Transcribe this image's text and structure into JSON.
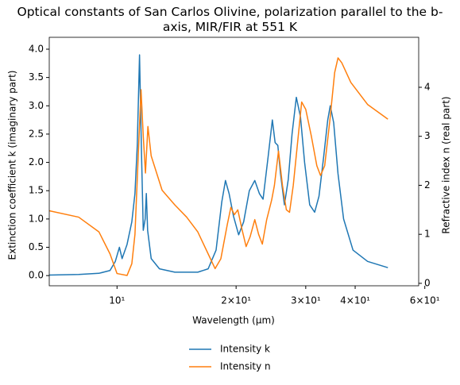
{
  "chart_data": {
    "type": "line",
    "title": "Optical constants of San Carlos Olivine, polarization parallel to the b-axis, MIR/FIR at 551 K",
    "x_label": "Wavelength (μm)",
    "y_label": "Extinction coefficient k (imaginary part)",
    "y2_label": "Refractive index n (real part)",
    "x_log": true,
    "xlim": [
      6.74,
      57.9
    ],
    "xticks": [
      {
        "value": 10,
        "label": "10¹"
      },
      {
        "value": 20,
        "label": "2×10¹"
      },
      {
        "value": 30,
        "label": "3×10¹"
      },
      {
        "value": 40,
        "label": "4×10¹"
      },
      {
        "value": 60,
        "label": "6×10¹"
      }
    ],
    "ylim": [
      -0.18,
      4.21
    ],
    "yticks": [
      {
        "value": 0,
        "label": "0.0"
      },
      {
        "value": 0.5,
        "label": "0.5"
      },
      {
        "value": 1,
        "label": "1.0"
      },
      {
        "value": 1.5,
        "label": "1.5"
      },
      {
        "value": 2,
        "label": "2.0"
      },
      {
        "value": 2.5,
        "label": "2.5"
      },
      {
        "value": 3,
        "label": "3.0"
      },
      {
        "value": 3.5,
        "label": "3.5"
      },
      {
        "value": 4,
        "label": "4.0"
      }
    ],
    "y2lim": [
      -0.05,
      5.02
    ],
    "y2ticks": [
      0,
      1,
      2,
      3,
      4
    ],
    "legend": "below",
    "series": [
      {
        "name": "Intensity k",
        "color": "#1f77b4",
        "x": [
          6.74,
          8,
          9,
          9.6,
          9.9,
          10.14,
          10.3,
          10.6,
          10.9,
          11.1,
          11.25,
          11.4,
          11.52,
          11.65,
          11.78,
          11.86,
          11.95,
          12.2,
          12.8,
          14,
          16,
          17,
          17.8,
          18.4,
          18.8,
          19.2,
          19.7,
          20.3,
          20.9,
          21.6,
          22.3,
          22.9,
          23.4,
          24.1,
          24.7,
          25.1,
          25.5,
          25.9,
          26.5,
          27.1,
          27.7,
          28.4,
          29.1,
          29.8,
          30.7,
          31.6,
          32.4,
          33.3,
          34.1,
          34.6,
          35.3,
          36.2,
          37.4,
          39.5,
          43,
          48.4
        ],
        "values": [
          0.01,
          0.02,
          0.04,
          0.09,
          0.25,
          0.5,
          0.3,
          0.55,
          0.95,
          1.45,
          2.3,
          3.9,
          2.3,
          0.8,
          1.0,
          1.45,
          0.8,
          0.3,
          0.12,
          0.06,
          0.06,
          0.12,
          0.45,
          1.3,
          1.68,
          1.45,
          1.05,
          0.72,
          0.95,
          1.5,
          1.68,
          1.45,
          1.35,
          2.1,
          2.75,
          2.35,
          2.3,
          1.8,
          1.25,
          1.7,
          2.5,
          3.15,
          2.8,
          2.0,
          1.25,
          1.12,
          1.4,
          2.1,
          2.75,
          3.0,
          2.7,
          1.8,
          1.0,
          0.45,
          0.25,
          0.14
        ]
      },
      {
        "name": "Intensity n",
        "color": "#ff7f0e",
        "axis": "y2",
        "x": [
          6.74,
          8,
          9,
          9.6,
          10,
          10.6,
          10.9,
          11.1,
          11.3,
          11.5,
          11.65,
          11.8,
          11.97,
          12.2,
          13,
          14,
          15,
          16,
          17,
          17.7,
          18.3,
          19,
          19.4,
          19.8,
          20.2,
          20.7,
          21.2,
          21.7,
          22.3,
          22.8,
          23.3,
          23.9,
          24.6,
          25,
          25.6,
          26.2,
          26.8,
          27.3,
          27.9,
          29.3,
          30,
          31,
          32,
          32.7,
          33.5,
          34.5,
          35.5,
          36.2,
          37,
          39,
          43,
          48.4
        ],
        "values": [
          1.48,
          1.35,
          1.05,
          0.6,
          0.2,
          0.16,
          0.4,
          1.0,
          2.5,
          3.95,
          3.0,
          2.25,
          3.2,
          2.6,
          1.9,
          1.6,
          1.35,
          1.05,
          0.6,
          0.3,
          0.5,
          1.2,
          1.55,
          1.4,
          1.5,
          1.1,
          0.75,
          0.95,
          1.3,
          1.0,
          0.8,
          1.3,
          1.7,
          2.0,
          2.7,
          2.0,
          1.5,
          1.45,
          2.0,
          3.7,
          3.55,
          3.0,
          2.4,
          2.2,
          2.4,
          3.3,
          4.3,
          4.6,
          4.5,
          4.1,
          3.65,
          3.35
        ]
      }
    ]
  }
}
